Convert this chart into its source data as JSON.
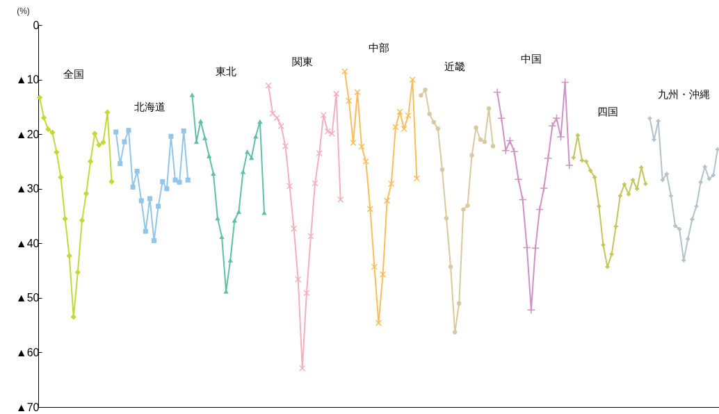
{
  "chart_data": {
    "type": "line",
    "ylabel": "(%)",
    "ylim": [
      -70,
      0
    ],
    "yticks": [
      {
        "value": -70,
        "label": "▲70"
      },
      {
        "value": -60,
        "label": "▲60"
      },
      {
        "value": -50,
        "label": "▲50"
      },
      {
        "value": -40,
        "label": "▲40"
      },
      {
        "value": -30,
        "label": "▲30"
      },
      {
        "value": -20,
        "label": "▲20"
      },
      {
        "value": -10,
        "label": "▲10"
      },
      0
    ],
    "categories": [
      null,
      null,
      null,
      null,
      null,
      null,
      null,
      null,
      null,
      null,
      null,
      null,
      null,
      null,
      null,
      null,
      null,
      null,
      null,
      null,
      null,
      null,
      null,
      null,
      null,
      null,
      null,
      null,
      null,
      null,
      null,
      null,
      null,
      null,
      null,
      null,
      null,
      null,
      null,
      null,
      null,
      null,
      null,
      null,
      null,
      null,
      null,
      null,
      null,
      null,
      null,
      null,
      null,
      null,
      null,
      null,
      null,
      null,
      null,
      null,
      null,
      null,
      null,
      null,
      null,
      null,
      null,
      null,
      null,
      null,
      null,
      null,
      null,
      null,
      null,
      null,
      null,
      null,
      null,
      null,
      null,
      null,
      null,
      null,
      null,
      null,
      null,
      null,
      null,
      null,
      null,
      null,
      null,
      null,
      null,
      null,
      null,
      null,
      null,
      null,
      null,
      null,
      null,
      null,
      null,
      null,
      null,
      null,
      null,
      null,
      null,
      null,
      null,
      null,
      null,
      null,
      null,
      null,
      null,
      null,
      null,
      null,
      null,
      null,
      null,
      null,
      null,
      null,
      null,
      null,
      null,
      null,
      null,
      null,
      null,
      null,
      null,
      null,
      null,
      null,
      null,
      null,
      null,
      null,
      null,
      null,
      null,
      null,
      null,
      null,
      null,
      null,
      null,
      null,
      null,
      null,
      null,
      null,
      null,
      null,
      null
    ],
    "series": [
      {
        "name": "全国",
        "color": "#c5d83a",
        "marker": "diamond",
        "values": [
          -13.3,
          -17.0,
          -19.1,
          -19.7,
          -23.3,
          -27.9,
          -35.5,
          -42.3,
          -53.5,
          -45.3,
          -35.8,
          -30.9,
          -25.0,
          -19.9,
          -22.0,
          -21.5,
          -16.0,
          -28.7,
          null,
          null,
          null,
          null,
          null,
          null,
          null,
          null,
          null,
          null,
          null,
          null,
          null,
          null,
          null,
          null,
          null,
          null,
          null,
          null,
          null,
          null,
          null,
          null,
          null,
          null,
          null,
          null,
          null,
          null,
          null,
          null,
          null,
          null,
          null,
          null,
          null,
          null,
          null,
          null,
          null,
          null,
          null,
          null,
          null,
          null,
          null,
          null,
          null,
          null,
          null,
          null,
          null,
          null,
          null,
          null,
          null,
          null,
          null,
          null,
          null,
          null,
          null,
          null,
          null,
          null,
          null,
          null,
          null,
          null,
          null,
          null,
          null,
          null,
          null,
          null,
          null,
          null,
          null,
          null,
          null,
          null,
          null,
          null,
          null,
          null,
          null,
          null,
          null,
          null,
          null,
          null,
          null,
          null,
          null,
          null,
          null,
          null,
          null,
          null,
          null,
          null,
          null,
          null,
          null,
          null,
          null,
          null,
          null,
          null,
          null,
          null,
          null,
          null,
          null,
          null,
          null,
          null,
          null,
          null,
          null,
          null,
          null,
          null,
          null,
          null,
          null,
          null,
          null,
          null,
          null,
          null,
          null,
          null,
          null,
          null,
          null,
          null,
          null,
          null,
          null,
          null,
          null
        ]
      },
      {
        "name": "北海道",
        "color": "#92c5ea",
        "marker": "square",
        "values": [
          null,
          null,
          null,
          null,
          null,
          null,
          null,
          null,
          null,
          null,
          null,
          null,
          null,
          null,
          null,
          null,
          null,
          null,
          -19.6,
          -25.4,
          -21.4,
          -19.3,
          -29.7,
          -26.8,
          -32.2,
          -37.8,
          -31.8,
          -39.5,
          -33.2,
          -28.7,
          -30.0,
          -20.4,
          -28.4,
          -28.8,
          -19.4,
          -28.4,
          null,
          null,
          null,
          null,
          null,
          null,
          null,
          null,
          null,
          null,
          null,
          null,
          null,
          null,
          null,
          null,
          null,
          null,
          null,
          null,
          null,
          null,
          null,
          null,
          null,
          null,
          null,
          null,
          null,
          null,
          null,
          null,
          null,
          null,
          null,
          null,
          null,
          null,
          null,
          null,
          null,
          null,
          null,
          null,
          null,
          null,
          null,
          null,
          null,
          null,
          null,
          null,
          null,
          null,
          null,
          null,
          null,
          null,
          null,
          null,
          null,
          null,
          null,
          null,
          null,
          null,
          null,
          null,
          null,
          null,
          null,
          null,
          null,
          null,
          null,
          null,
          null,
          null,
          null,
          null,
          null,
          null,
          null,
          null,
          null,
          null,
          null,
          null,
          null,
          null,
          null,
          null,
          null,
          null,
          null,
          null,
          null,
          null,
          null,
          null,
          null,
          null,
          null,
          null,
          null,
          null,
          null,
          null,
          null,
          null,
          null,
          null,
          null,
          null,
          null,
          null,
          null,
          null,
          null,
          null,
          null,
          null,
          null,
          null,
          null
        ]
      },
      {
        "name": "東北",
        "color": "#5fc0a4",
        "marker": "triangle",
        "values": [
          null,
          null,
          null,
          null,
          null,
          null,
          null,
          null,
          null,
          null,
          null,
          null,
          null,
          null,
          null,
          null,
          null,
          null,
          null,
          null,
          null,
          null,
          null,
          null,
          null,
          null,
          null,
          null,
          null,
          null,
          null,
          null,
          null,
          null,
          null,
          null,
          -12.8,
          -21.4,
          -17.6,
          -20.7,
          -24.0,
          -27.2,
          -35.4,
          -38.8,
          -48.8,
          -43.1,
          -35.8,
          -34.2,
          -26.9,
          -23.2,
          -24.3,
          -20.4,
          -17.7,
          -34.4,
          null,
          null,
          null,
          null,
          null,
          null,
          null,
          null,
          null,
          null,
          null,
          null,
          null,
          null,
          null,
          null,
          null,
          null,
          null,
          null,
          null,
          null,
          null,
          null,
          null,
          null,
          null,
          null,
          null,
          null,
          null,
          null,
          null,
          null,
          null,
          null,
          null,
          null,
          null,
          null,
          null,
          null,
          null,
          null,
          null,
          null,
          null,
          null,
          null,
          null,
          null,
          null,
          null,
          null,
          null,
          null,
          null,
          null,
          null,
          null,
          null,
          null,
          null,
          null,
          null,
          null,
          null,
          null,
          null,
          null,
          null,
          null,
          null,
          null,
          null,
          null,
          null,
          null,
          null,
          null,
          null,
          null,
          null,
          null,
          null,
          null,
          null,
          null,
          null,
          null,
          null,
          null,
          null,
          null,
          null,
          null,
          null,
          null,
          null,
          null,
          null,
          null,
          null,
          null,
          null,
          null,
          null
        ]
      },
      {
        "name": "関東",
        "color": "#f3afbb",
        "marker": "x",
        "values": [
          null,
          null,
          null,
          null,
          null,
          null,
          null,
          null,
          null,
          null,
          null,
          null,
          null,
          null,
          null,
          null,
          null,
          null,
          null,
          null,
          null,
          null,
          null,
          null,
          null,
          null,
          null,
          null,
          null,
          null,
          null,
          null,
          null,
          null,
          null,
          null,
          null,
          null,
          null,
          null,
          null,
          null,
          null,
          null,
          null,
          null,
          null,
          null,
          null,
          null,
          null,
          null,
          null,
          null,
          -11.1,
          -16.2,
          -17.0,
          -18.5,
          -22.2,
          -29.5,
          -37.3,
          -46.6,
          -62.9,
          -49.1,
          -38.7,
          -29.0,
          -23.5,
          -16.5,
          -19.5,
          -19.9,
          -12.6,
          -32.0,
          null,
          null,
          null,
          null,
          null,
          null,
          null,
          null,
          null,
          null,
          null,
          null,
          null,
          null,
          null,
          null,
          null,
          null,
          null,
          null,
          null,
          null,
          null,
          null,
          null,
          null,
          null,
          null,
          null,
          null,
          null,
          null,
          null,
          null,
          null,
          null,
          null,
          null,
          null,
          null,
          null,
          null,
          null,
          null,
          null,
          null,
          null,
          null,
          null,
          null,
          null,
          null,
          null,
          null,
          null,
          null,
          null,
          null,
          null,
          null,
          null,
          null,
          null,
          null,
          null,
          null,
          null,
          null,
          null,
          null,
          null,
          null,
          null,
          null,
          null,
          null,
          null,
          null,
          null,
          null,
          null,
          null,
          null,
          null,
          null,
          null,
          null,
          null,
          null
        ]
      },
      {
        "name": "中部",
        "color": "#fbbd5a",
        "marker": "x",
        "values": [
          null,
          null,
          null,
          null,
          null,
          null,
          null,
          null,
          null,
          null,
          null,
          null,
          null,
          null,
          null,
          null,
          null,
          null,
          null,
          null,
          null,
          null,
          null,
          null,
          null,
          null,
          null,
          null,
          null,
          null,
          null,
          null,
          null,
          null,
          null,
          null,
          null,
          null,
          null,
          null,
          null,
          null,
          null,
          null,
          null,
          null,
          null,
          null,
          null,
          null,
          null,
          null,
          null,
          null,
          null,
          null,
          null,
          null,
          null,
          null,
          null,
          null,
          null,
          null,
          null,
          null,
          null,
          null,
          null,
          null,
          null,
          null,
          -8.5,
          -13.9,
          -21.6,
          -12.3,
          -22.3,
          -25.0,
          -33.7,
          -44.3,
          -54.6,
          -45.7,
          -32.2,
          -29.1,
          -18.7,
          -15.9,
          -19.0,
          -16.6,
          -10.0,
          -28.1,
          null,
          null,
          null,
          null,
          null,
          null,
          null,
          null,
          null,
          null,
          null,
          null,
          null,
          null,
          null,
          null,
          null,
          null,
          null,
          null,
          null,
          null,
          null,
          null,
          null,
          null,
          null,
          null,
          null,
          null,
          null,
          null,
          null,
          null,
          null,
          null,
          null,
          null,
          null,
          null,
          null,
          null,
          null,
          null,
          null,
          null,
          null,
          null,
          null,
          null,
          null,
          null,
          null,
          null,
          null,
          null,
          null,
          null,
          null,
          null,
          null,
          null,
          null,
          null,
          null,
          null,
          null,
          null,
          null,
          null,
          null
        ]
      },
      {
        "name": "近畿",
        "color": "#d7c9a0",
        "marker": "circle",
        "values": [
          null,
          null,
          null,
          null,
          null,
          null,
          null,
          null,
          null,
          null,
          null,
          null,
          null,
          null,
          null,
          null,
          null,
          null,
          null,
          null,
          null,
          null,
          null,
          null,
          null,
          null,
          null,
          null,
          null,
          null,
          null,
          null,
          null,
          null,
          null,
          null,
          null,
          null,
          null,
          null,
          null,
          null,
          null,
          null,
          null,
          null,
          null,
          null,
          null,
          null,
          null,
          null,
          null,
          null,
          null,
          null,
          null,
          null,
          null,
          null,
          null,
          null,
          null,
          null,
          null,
          null,
          null,
          null,
          null,
          null,
          null,
          null,
          null,
          null,
          null,
          null,
          null,
          null,
          null,
          null,
          null,
          null,
          null,
          null,
          null,
          null,
          null,
          null,
          null,
          null,
          -12.9,
          -11.9,
          -16.3,
          -17.8,
          -19.0,
          -26.5,
          -35.4,
          -44.3,
          -56.3,
          -51.0,
          -33.8,
          -33.1,
          -23.9,
          -18.8,
          -21.0,
          -21.4,
          -15.3,
          -22.2,
          null,
          null,
          null,
          null,
          null,
          null,
          null,
          null,
          null,
          null,
          null,
          null,
          null,
          null,
          null,
          null,
          null,
          null,
          null,
          null,
          null,
          null,
          null,
          null,
          null,
          null,
          null,
          null,
          null,
          null,
          null,
          null,
          null,
          null,
          null,
          null,
          null,
          null,
          null,
          null,
          null,
          null,
          null,
          null,
          null,
          null,
          null,
          null,
          null,
          null,
          null,
          null,
          null
        ]
      },
      {
        "name": "中国",
        "color": "#cf91c4",
        "marker": "plus",
        "values": [
          null,
          null,
          null,
          null,
          null,
          null,
          null,
          null,
          null,
          null,
          null,
          null,
          null,
          null,
          null,
          null,
          null,
          null,
          null,
          null,
          null,
          null,
          null,
          null,
          null,
          null,
          null,
          null,
          null,
          null,
          null,
          null,
          null,
          null,
          null,
          null,
          null,
          null,
          null,
          null,
          null,
          null,
          null,
          null,
          null,
          null,
          null,
          null,
          null,
          null,
          null,
          null,
          null,
          null,
          null,
          null,
          null,
          null,
          null,
          null,
          null,
          null,
          null,
          null,
          null,
          null,
          null,
          null,
          null,
          null,
          null,
          null,
          null,
          null,
          null,
          null,
          null,
          null,
          null,
          null,
          null,
          null,
          null,
          null,
          null,
          null,
          null,
          null,
          null,
          null,
          null,
          null,
          null,
          null,
          null,
          null,
          null,
          null,
          null,
          null,
          null,
          null,
          null,
          null,
          null,
          null,
          null,
          null,
          -12.3,
          -17.1,
          -23.0,
          -21.2,
          -23.2,
          -28.3,
          -32.0,
          -40.8,
          -52.2,
          -40.9,
          -33.8,
          -29.9,
          -24.4,
          -18.5,
          -17.1,
          -20.5,
          -10.5,
          -25.7,
          null,
          null,
          null,
          null,
          null,
          null,
          null,
          null,
          null,
          null,
          null,
          null,
          null,
          null,
          null,
          null,
          null,
          null,
          null,
          null,
          null,
          null,
          null,
          null,
          null,
          null,
          null,
          null,
          null,
          null,
          null,
          null,
          null,
          null,
          null
        ]
      },
      {
        "name": "四国",
        "color": "#c3c55a",
        "marker": "cross",
        "values": [
          null,
          null,
          null,
          null,
          null,
          null,
          null,
          null,
          null,
          null,
          null,
          null,
          null,
          null,
          null,
          null,
          null,
          null,
          null,
          null,
          null,
          null,
          null,
          null,
          null,
          null,
          null,
          null,
          null,
          null,
          null,
          null,
          null,
          null,
          null,
          null,
          null,
          null,
          null,
          null,
          null,
          null,
          null,
          null,
          null,
          null,
          null,
          null,
          null,
          null,
          null,
          null,
          null,
          null,
          null,
          null,
          null,
          null,
          null,
          null,
          null,
          null,
          null,
          null,
          null,
          null,
          null,
          null,
          null,
          null,
          null,
          null,
          null,
          null,
          null,
          null,
          null,
          null,
          null,
          null,
          null,
          null,
          null,
          null,
          null,
          null,
          null,
          null,
          null,
          null,
          null,
          null,
          null,
          null,
          null,
          null,
          null,
          null,
          null,
          null,
          null,
          null,
          null,
          null,
          null,
          null,
          null,
          null,
          null,
          null,
          null,
          null,
          null,
          null,
          null,
          null,
          null,
          null,
          null,
          null,
          null,
          null,
          null,
          null,
          null,
          null,
          -24.3,
          -20.2,
          -24.8,
          -25.0,
          -26.7,
          -27.9,
          -33.2,
          -40.3,
          -44.3,
          -42.0,
          -36.9,
          -31.3,
          -29.2,
          -31.0,
          -28.4,
          -30.0,
          -26.1,
          -29.1,
          null,
          null,
          null,
          null,
          null,
          null,
          null,
          null,
          null,
          null,
          null,
          null,
          null,
          null,
          null,
          null,
          null
        ]
      },
      {
        "name": "九州・沖縄",
        "color": "#b3c2c8",
        "marker": "cross",
        "values": [
          null,
          null,
          null,
          null,
          null,
          null,
          null,
          null,
          null,
          null,
          null,
          null,
          null,
          null,
          null,
          null,
          null,
          null,
          null,
          null,
          null,
          null,
          null,
          null,
          null,
          null,
          null,
          null,
          null,
          null,
          null,
          null,
          null,
          null,
          null,
          null,
          null,
          null,
          null,
          null,
          null,
          null,
          null,
          null,
          null,
          null,
          null,
          null,
          null,
          null,
          null,
          null,
          null,
          null,
          null,
          null,
          null,
          null,
          null,
          null,
          null,
          null,
          null,
          null,
          null,
          null,
          null,
          null,
          null,
          null,
          null,
          null,
          null,
          null,
          null,
          null,
          null,
          null,
          null,
          null,
          null,
          null,
          null,
          null,
          null,
          null,
          null,
          null,
          null,
          null,
          null,
          null,
          null,
          null,
          null,
          null,
          null,
          null,
          null,
          null,
          null,
          null,
          null,
          null,
          null,
          null,
          null,
          null,
          null,
          null,
          null,
          null,
          null,
          null,
          null,
          null,
          null,
          null,
          null,
          null,
          null,
          null,
          null,
          null,
          null,
          null,
          null,
          null,
          null,
          null,
          null,
          null,
          null,
          null,
          null,
          null,
          null,
          null,
          null,
          null,
          null,
          null,
          null,
          null,
          -17.1,
          -21.0,
          -17.6,
          -28.4,
          -27.3,
          -31.3,
          -36.8,
          -37.4,
          -43.1,
          -39.2,
          -35.6,
          -33.2,
          -28.8,
          -26.0,
          -28.2,
          -27.5,
          -22.8
        ]
      }
    ]
  }
}
